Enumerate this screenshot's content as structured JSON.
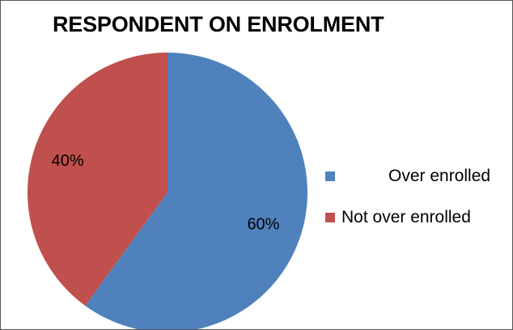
{
  "chart_data": {
    "type": "pie",
    "title": "RESPONDENT ON ENROLMENT",
    "categories": [
      "Over enrolled",
      "Not over enrolled"
    ],
    "values": [
      60,
      40
    ],
    "data_labels": [
      "60%",
      "40%"
    ],
    "colors": [
      "#4F81BD",
      "#C0504D"
    ],
    "legend": "right"
  }
}
